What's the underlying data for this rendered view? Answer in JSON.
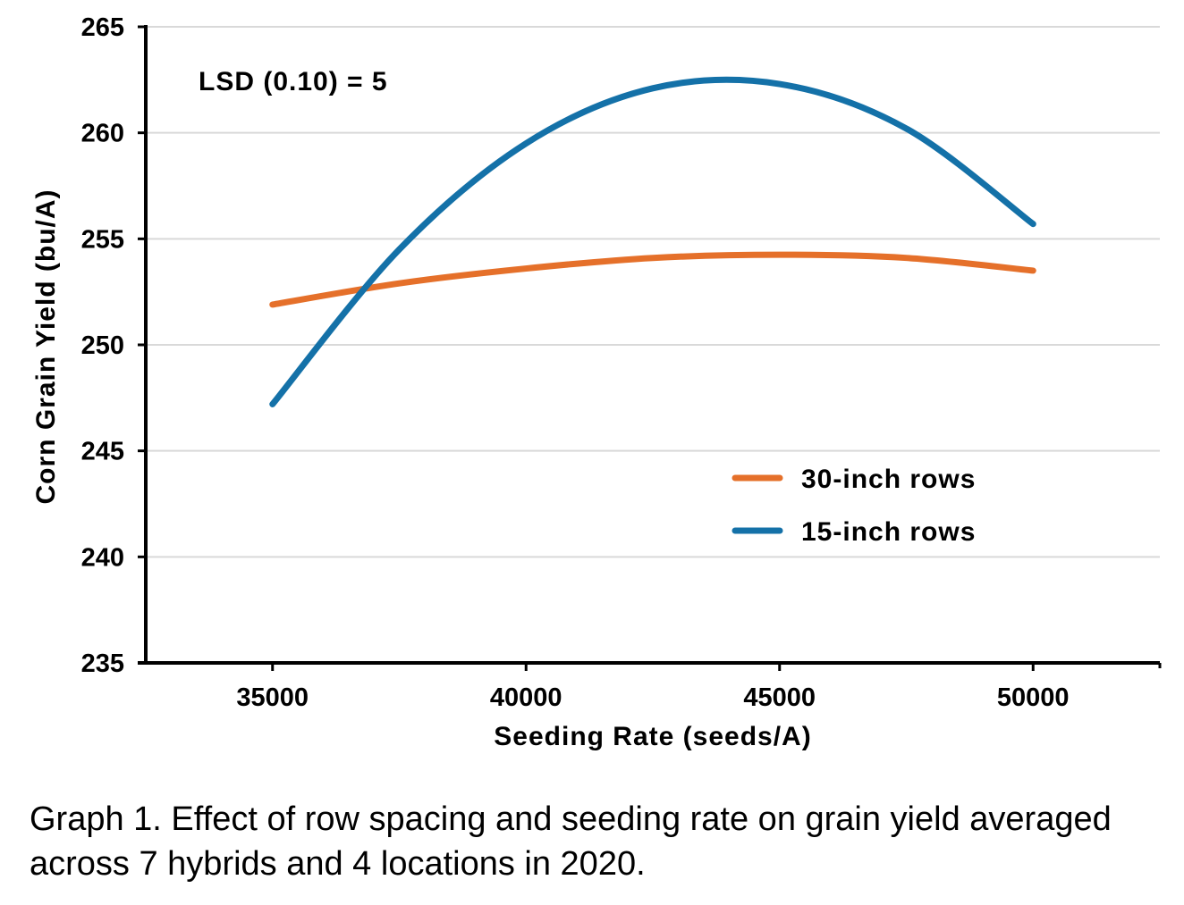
{
  "chart_data": {
    "type": "line",
    "title": "",
    "xlabel": "Seeding Rate (seeds/A)",
    "ylabel": "Corn Grain Yield (bu/A)",
    "xlim": [
      32500,
      52500
    ],
    "ylim": [
      235,
      265
    ],
    "x_ticks": [
      35000,
      40000,
      45000,
      50000
    ],
    "y_ticks": [
      235,
      240,
      245,
      250,
      255,
      260,
      265
    ],
    "grid": "horizontal",
    "legend": "center-right",
    "annotation": "LSD (0.10) = 5",
    "x": [
      35000,
      37500,
      40000,
      42500,
      45000,
      47500,
      50000
    ],
    "series": [
      {
        "name": "30-inch rows",
        "color": "#E5702A",
        "values": [
          251.9,
          252.9,
          253.6,
          254.1,
          254.25,
          254.1,
          253.5
        ]
      },
      {
        "name": "15-inch rows",
        "color": "#1471A8",
        "values": [
          247.2,
          254.5,
          259.5,
          262.1,
          262.3,
          260.2,
          255.7
        ]
      }
    ]
  },
  "caption": "Graph 1. Effect of row spacing and seeding rate on grain yield averaged across 7 hybrids and 4 locations in 2020."
}
